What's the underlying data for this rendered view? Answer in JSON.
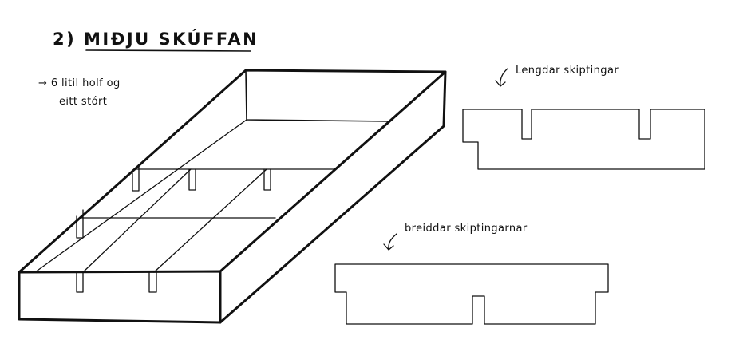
{
  "title": "2) MIÐJU SKÚFFAN",
  "note": {
    "line1": "→ 6 litil holf og",
    "line2": "eitt stórt"
  },
  "parts": [
    {
      "label": "Lengdar skiptingar"
    },
    {
      "label": "breiddar skiptingarnar"
    }
  ]
}
